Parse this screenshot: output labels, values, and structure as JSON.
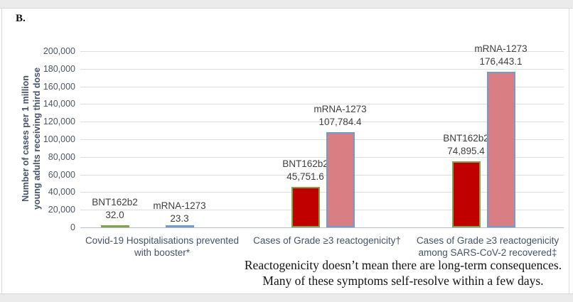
{
  "page": {
    "panel_label": "B.",
    "caption_lines": [
      "Reactogenicity doesn’t mean there are long-term consequences.",
      "Many of these symptoms self-resolve within a few days."
    ]
  },
  "chart_data": {
    "type": "bar",
    "title": "",
    "ylabel_lines": [
      "Number of cases per 1 million",
      "young adults receiving third dose"
    ],
    "ylim": [
      0,
      200000
    ],
    "ytick_step": 20000,
    "ytick_labels": [
      "0",
      "20,000",
      "40,000",
      "60,000",
      "80,000",
      "100,000",
      "120,000",
      "140,000",
      "160,000",
      "180,000",
      "200,000"
    ],
    "grid": true,
    "legend": "none (labels above bars)",
    "categories": [
      {
        "label_lines": [
          "Covid-19 Hospitalisations prevented",
          "with booster*"
        ]
      },
      {
        "label_lines": [
          "Cases of Grade ≥3 reactogenicity†"
        ]
      },
      {
        "label_lines": [
          "Cases of Grade ≥3 reactogenicity",
          "among SARS-CoV-2 recovered‡"
        ]
      }
    ],
    "series": [
      {
        "name": "BNT162b2",
        "fill": "#c00000",
        "border": "#7ea648",
        "values": [
          32.0,
          45751.6,
          74895.4
        ],
        "value_labels": [
          "32.0",
          "45,751.6",
          "74,895.4"
        ]
      },
      {
        "name": "mRNA-1273",
        "fill": "#d97f83",
        "border": "#6e9dd6",
        "values": [
          23.3,
          107784.4,
          176443.1
        ],
        "value_labels": [
          "23.3",
          "107,784.4",
          "176,443.1"
        ]
      }
    ],
    "colors": {
      "gridline": "#dbdee2",
      "axis_line": "#b9bec5",
      "tick_text": "#4d5766",
      "category_text": "#44546a",
      "data_label_text": "#404040",
      "ylabel_text": "#44546a"
    }
  }
}
